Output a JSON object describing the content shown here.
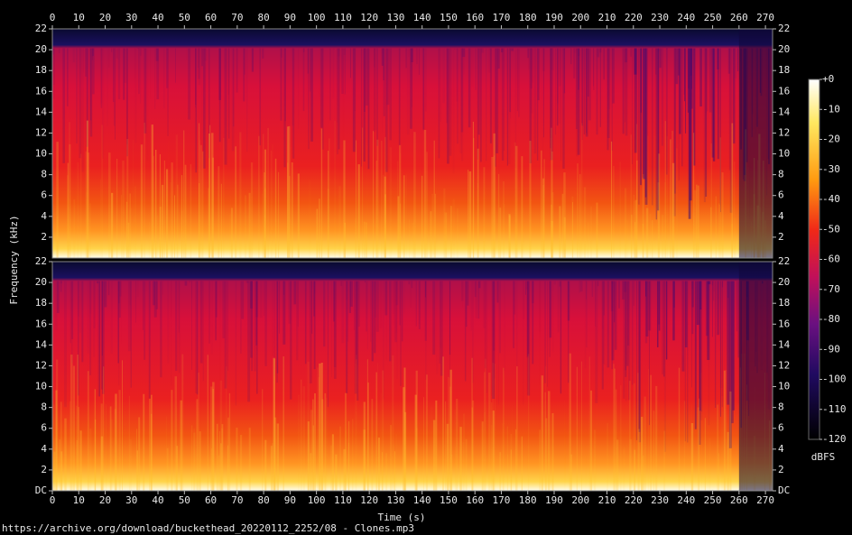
{
  "chart_data": {
    "type": "spectrogram",
    "x_label": "Time (s)",
    "y_label": "Frequency (kHz)",
    "xlim": [
      0,
      272.7
    ],
    "xticks": [
      0,
      10,
      20,
      30,
      40,
      50,
      60,
      70,
      80,
      90,
      100,
      110,
      120,
      130,
      140,
      150,
      160,
      170,
      180,
      190,
      200,
      210,
      220,
      230,
      240,
      250,
      260,
      270
    ],
    "panels": [
      {
        "ylim": [
          0,
          22
        ],
        "yticks": [
          2,
          4,
          6,
          8,
          10,
          12,
          14,
          16,
          18,
          20,
          22
        ]
      },
      {
        "ylim": [
          0,
          22
        ],
        "yticks": [
          {
            "value": 0,
            "label": "DC"
          },
          2,
          4,
          6,
          8,
          10,
          12,
          14,
          16,
          18,
          20,
          22
        ]
      }
    ],
    "colorbar": {
      "label": "dBFS",
      "lim": [
        -120,
        0
      ],
      "ticks": [
        {
          "value": 0,
          "label": "+0"
        },
        -10,
        -20,
        -30,
        -40,
        -50,
        -60,
        -70,
        -80,
        -90,
        -100,
        -110,
        -120
      ]
    }
  },
  "caption": "https://archive.org/download/buckethead_20220112_2252/08 - Clones.mp3"
}
